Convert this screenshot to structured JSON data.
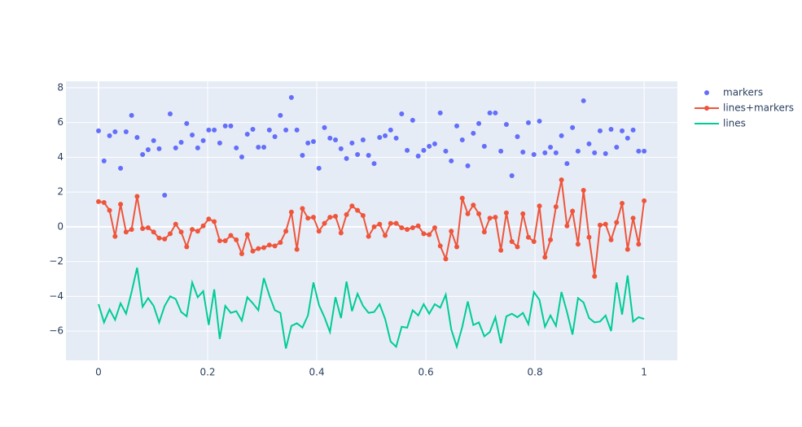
{
  "chart_data": {
    "type": "scatter",
    "x": [
      0,
      0.0101,
      0.0202,
      0.0303,
      0.0404,
      0.0505,
      0.0606,
      0.0707,
      0.0808,
      0.0909,
      0.101,
      0.1111,
      0.1212,
      0.1313,
      0.1414,
      0.1515,
      0.1616,
      0.1717,
      0.1818,
      0.1919,
      0.202,
      0.2121,
      0.2222,
      0.2323,
      0.2424,
      0.2525,
      0.2626,
      0.2727,
      0.2828,
      0.2929,
      0.303,
      0.3131,
      0.3232,
      0.3333,
      0.3434,
      0.3535,
      0.3636,
      0.3737,
      0.3838,
      0.3939,
      0.404,
      0.4141,
      0.4242,
      0.4343,
      0.4444,
      0.4545,
      0.4646,
      0.4747,
      0.4848,
      0.4949,
      0.5051,
      0.5152,
      0.5253,
      0.5354,
      0.5455,
      0.5556,
      0.5657,
      0.5758,
      0.5859,
      0.596,
      0.6061,
      0.6162,
      0.6263,
      0.6364,
      0.6465,
      0.6566,
      0.6667,
      0.6768,
      0.6869,
      0.697,
      0.7071,
      0.7172,
      0.7273,
      0.7374,
      0.7475,
      0.7576,
      0.7677,
      0.7778,
      0.7879,
      0.798,
      0.8081,
      0.8182,
      0.8283,
      0.8384,
      0.8485,
      0.8586,
      0.8687,
      0.8788,
      0.8889,
      0.899,
      0.9091,
      0.9192,
      0.9293,
      0.9394,
      0.9495,
      0.9596,
      0.9697,
      0.9798,
      0.9899,
      1
    ],
    "series": [
      {
        "name": "markers",
        "mode": "markers",
        "color": "#636efa",
        "values": [
          5.52,
          3.79,
          5.24,
          5.47,
          3.37,
          5.47,
          6.41,
          5.14,
          4.16,
          4.44,
          4.96,
          4.49,
          1.82,
          6.5,
          4.54,
          4.86,
          5.94,
          5.28,
          4.54,
          4.96,
          5.57,
          5.57,
          4.82,
          5.8,
          5.8,
          4.54,
          4.02,
          5.33,
          5.61,
          4.58,
          4.58,
          5.57,
          5.19,
          6.41,
          5.57,
          7.44,
          5.57,
          4.11,
          4.82,
          4.91,
          3.37,
          5.71,
          5.1,
          5.0,
          4.49,
          3.93,
          4.82,
          4.16,
          5.0,
          4.11,
          3.64,
          5.14,
          5.24,
          5.57,
          5.1,
          6.5,
          4.4,
          6.13,
          4.07,
          4.4,
          4.63,
          4.77,
          6.55,
          4.35,
          3.79,
          5.8,
          5.0,
          3.51,
          5.38,
          5.94,
          4.63,
          6.55,
          6.55,
          4.35,
          5.89,
          2.94,
          5.19,
          4.3,
          5.99,
          4.16,
          6.08,
          4.26,
          4.58,
          4.26,
          5.24,
          3.64,
          5.71,
          4.35,
          7.25,
          4.77,
          4.26,
          5.52,
          4.21,
          5.61,
          4.58,
          5.52,
          5.1,
          5.57,
          4.35,
          4.35
        ]
      },
      {
        "name": "lines+markers",
        "mode": "lines+markers",
        "color": "#EF553B",
        "values": [
          1.45,
          1.4,
          0.95,
          -0.55,
          1.3,
          -0.3,
          -0.15,
          1.75,
          -0.1,
          -0.05,
          -0.3,
          -0.65,
          -0.7,
          -0.4,
          0.15,
          -0.3,
          -1.15,
          -0.15,
          -0.25,
          0.05,
          0.45,
          0.3,
          -0.8,
          -0.8,
          -0.5,
          -0.75,
          -1.55,
          -0.45,
          -1.4,
          -1.25,
          -1.2,
          -1.05,
          -1.1,
          -0.9,
          -0.25,
          0.85,
          -1.3,
          1.05,
          0.5,
          0.55,
          -0.25,
          0.2,
          0.55,
          0.6,
          -0.35,
          0.7,
          1.2,
          0.95,
          0.65,
          -0.55,
          0.0,
          0.15,
          -0.5,
          0.2,
          0.2,
          -0.05,
          -0.15,
          -0.05,
          0.05,
          -0.4,
          -0.45,
          -0.05,
          -1.1,
          -1.85,
          -0.25,
          -1.15,
          1.65,
          0.75,
          1.25,
          0.75,
          -0.3,
          0.5,
          0.55,
          -1.35,
          0.8,
          -0.85,
          -1.15,
          0.75,
          -0.6,
          -0.85,
          1.2,
          -1.75,
          -0.75,
          1.15,
          2.7,
          0.05,
          0.9,
          -1.0,
          2.1,
          -0.6,
          -2.85,
          0.1,
          0.15,
          -0.75,
          0.25,
          1.35,
          -1.3,
          0.5,
          -1.0,
          1.5
        ]
      },
      {
        "name": "lines",
        "mode": "lines",
        "color": "#00cc96",
        "values": [
          -4.45,
          -5.5,
          -4.75,
          -5.35,
          -4.4,
          -5.0,
          -3.75,
          -2.35,
          -4.6,
          -4.1,
          -4.55,
          -5.5,
          -4.55,
          -4.0,
          -4.15,
          -4.9,
          -5.15,
          -3.2,
          -4.05,
          -3.7,
          -5.65,
          -3.6,
          -6.45,
          -4.55,
          -4.95,
          -4.85,
          -5.4,
          -4.05,
          -4.4,
          -4.8,
          -2.95,
          -3.95,
          -4.8,
          -4.95,
          -7.0,
          -5.7,
          -5.55,
          -5.8,
          -5.1,
          -3.2,
          -4.5,
          -5.2,
          -6.05,
          -4.05,
          -5.25,
          -3.15,
          -4.85,
          -3.85,
          -4.55,
          -4.95,
          -4.9,
          -4.45,
          -5.3,
          -6.6,
          -6.9,
          -5.75,
          -5.8,
          -4.8,
          -5.1,
          -4.45,
          -5.0,
          -4.45,
          -4.65,
          -3.9,
          -5.9,
          -6.9,
          -5.75,
          -4.3,
          -5.65,
          -5.5,
          -6.3,
          -6.05,
          -5.2,
          -6.7,
          -5.15,
          -5.0,
          -5.2,
          -4.95,
          -5.6,
          -3.75,
          -4.2,
          -5.75,
          -5.1,
          -5.7,
          -3.75,
          -4.9,
          -6.2,
          -4.1,
          -4.35,
          -5.25,
          -5.5,
          -5.45,
          -5.1,
          -6.0,
          -3.2,
          -5.05,
          -2.8,
          -5.45,
          -5.2,
          -5.3
        ]
      }
    ],
    "xlim": [
      -0.0597,
      1.061
    ],
    "ylim": [
      -7.68,
      8.37
    ],
    "xticks": [
      0,
      0.2,
      0.4,
      0.6,
      0.8,
      1
    ],
    "yticks": [
      {
        "value": -6,
        "label": "−6"
      },
      {
        "value": -4,
        "label": "−4"
      },
      {
        "value": -2,
        "label": "−2"
      },
      0,
      2,
      4,
      6,
      8
    ],
    "grid": true,
    "legend": "right"
  }
}
